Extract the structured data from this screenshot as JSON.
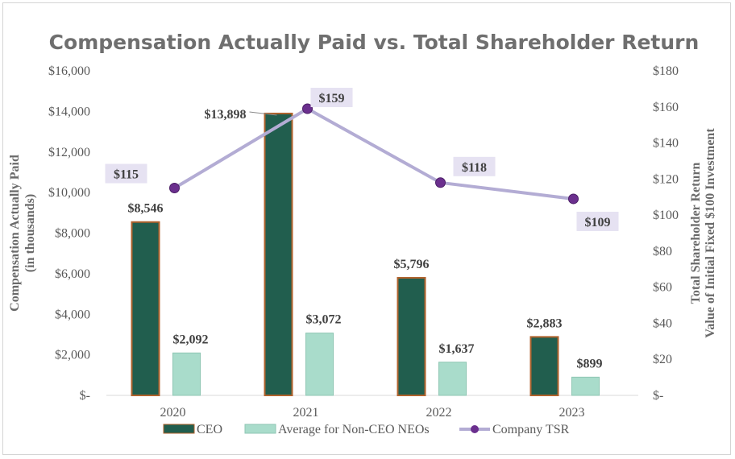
{
  "chart_data": {
    "type": "bar",
    "title": "Compensation Actually Paid vs. Total Shareholder Return",
    "categories": [
      "2020",
      "2021",
      "2022",
      "2023"
    ],
    "series": [
      {
        "name": "CEO",
        "type": "bar",
        "axis": "left",
        "values": [
          8546,
          13898,
          5796,
          2883
        ],
        "labels": [
          "$8,546",
          "$13,898",
          "$5,796",
          "$2,883"
        ],
        "color": "#215e4e",
        "edge_color": "#b0622c"
      },
      {
        "name": "Average for Non-CEO NEOs",
        "type": "bar",
        "axis": "left",
        "values": [
          2092,
          3072,
          1637,
          899
        ],
        "labels": [
          "$2,092",
          "$3,072",
          "$1,637",
          "$899"
        ],
        "color": "#a9dccb",
        "edge_color": "#8ec6b3"
      },
      {
        "name": "Company TSR",
        "type": "line",
        "axis": "right",
        "values": [
          115,
          159,
          118,
          109
        ],
        "labels": [
          "$115",
          "$159",
          "$118",
          "$109"
        ],
        "color": "#b3acd4",
        "marker_color": "#6b2f8e",
        "label_bg": "#e6e2f2"
      }
    ],
    "ylabel": "Compensation Actually Paid",
    "ylabel_sub": "(in thousands)",
    "ylim": [
      0,
      16000
    ],
    "yticks": [
      0,
      2000,
      4000,
      6000,
      8000,
      10000,
      12000,
      14000,
      16000
    ],
    "ytick_labels": [
      "$-",
      "$2,000",
      "$4,000",
      "$6,000",
      "$8,000",
      "$10,000",
      "$12,000",
      "$14,000",
      "$16,000"
    ],
    "y2label": "Total Shareholder Return",
    "y2label_sub": "Value of Initial Fixed $100 Investment",
    "y2lim": [
      0,
      180
    ],
    "y2ticks": [
      0,
      20,
      40,
      60,
      80,
      100,
      120,
      140,
      160,
      180
    ],
    "y2tick_labels": [
      "$-",
      "$20",
      "$40",
      "$60",
      "$80",
      "$100",
      "$120",
      "$140",
      "$160",
      "$180"
    ],
    "grid": false,
    "legend_position": "bottom"
  }
}
